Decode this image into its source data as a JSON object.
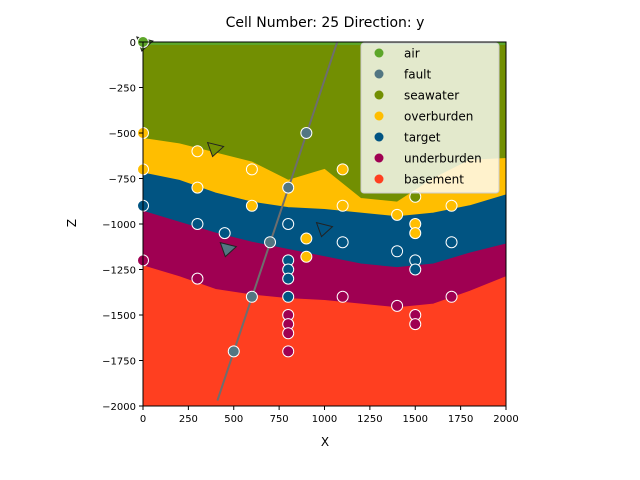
{
  "chart_data": {
    "type": "scatter",
    "title": "Cell Number: 25 Direction: y",
    "xlabel": "X",
    "ylabel": "Z",
    "xlim": [
      0,
      2000
    ],
    "ylim": [
      -2000,
      0
    ],
    "xticks": [
      0,
      250,
      500,
      750,
      1000,
      1250,
      1500,
      1750,
      2000
    ],
    "yticks": [
      0,
      -250,
      -500,
      -750,
      -1000,
      -1250,
      -1500,
      -1750,
      -2000
    ],
    "xtick_labels": [
      "0",
      "250",
      "500",
      "750",
      "1000",
      "1250",
      "1500",
      "1750",
      "2000"
    ],
    "ytick_labels": [
      "0",
      "−250",
      "−500",
      "−750",
      "−1000",
      "−1250",
      "−1500",
      "−1750",
      "−2000"
    ],
    "legend_position": "top-right",
    "units": [
      {
        "name": "air",
        "color": "#5DA629"
      },
      {
        "name": "fault",
        "color": "#527682"
      },
      {
        "name": "seawater",
        "color": "#728F02"
      },
      {
        "name": "overburden",
        "color": "#FFBE00"
      },
      {
        "name": "target",
        "color": "#015482"
      },
      {
        "name": "underburden",
        "color": "#9F0052"
      },
      {
        "name": "basement",
        "color": "#FF3F20"
      }
    ],
    "layers": [
      {
        "unit": "seawater",
        "top": [
          [
            0,
            0
          ],
          [
            2000,
            0
          ]
        ],
        "bottom": [
          [
            0,
            -530
          ],
          [
            200,
            -560
          ],
          [
            400,
            -610
          ],
          [
            600,
            -660
          ],
          [
            800,
            -760
          ],
          [
            1000,
            -700
          ],
          [
            1200,
            -860
          ],
          [
            1400,
            -880
          ],
          [
            1600,
            -750
          ],
          [
            1800,
            -650
          ],
          [
            2000,
            -640
          ]
        ]
      },
      {
        "unit": "overburden",
        "bottom": [
          [
            0,
            -720
          ],
          [
            200,
            -760
          ],
          [
            400,
            -830
          ],
          [
            600,
            -880
          ],
          [
            800,
            -910
          ],
          [
            1000,
            -920
          ],
          [
            1200,
            -940
          ],
          [
            1400,
            -960
          ],
          [
            1600,
            -940
          ],
          [
            1800,
            -900
          ],
          [
            2000,
            -840
          ]
        ]
      },
      {
        "unit": "target",
        "bottom": [
          [
            0,
            -930
          ],
          [
            200,
            -990
          ],
          [
            400,
            -1050
          ],
          [
            600,
            -1100
          ],
          [
            800,
            -1140
          ],
          [
            1000,
            -1180
          ],
          [
            1200,
            -1220
          ],
          [
            1400,
            -1240
          ],
          [
            1600,
            -1220
          ],
          [
            1800,
            -1160
          ],
          [
            2000,
            -1110
          ]
        ]
      },
      {
        "unit": "underburden",
        "bottom": [
          [
            0,
            -1230
          ],
          [
            200,
            -1290
          ],
          [
            400,
            -1360
          ],
          [
            600,
            -1390
          ],
          [
            800,
            -1410
          ],
          [
            1000,
            -1420
          ],
          [
            1200,
            -1440
          ],
          [
            1400,
            -1460
          ],
          [
            1600,
            -1440
          ],
          [
            1800,
            -1370
          ],
          [
            2000,
            -1290
          ]
        ]
      },
      {
        "unit": "basement",
        "bottom": [
          [
            0,
            -2000
          ],
          [
            2000,
            -2000
          ]
        ]
      }
    ],
    "fault_line": {
      "x": [
        410,
        1070
      ],
      "y": [
        -1970,
        0
      ],
      "color": "#6E6E6E"
    },
    "series": [
      {
        "name": "air",
        "points": [
          [
            0,
            0
          ]
        ]
      },
      {
        "name": "fault",
        "points": [
          [
            900,
            -500
          ],
          [
            800,
            -800
          ],
          [
            700,
            -1100
          ],
          [
            600,
            -1400
          ],
          [
            500,
            -1700
          ]
        ]
      },
      {
        "name": "seawater",
        "points": [
          [
            1500,
            -850
          ]
        ]
      },
      {
        "name": "overburden",
        "points": [
          [
            0,
            -500
          ],
          [
            300,
            -600
          ],
          [
            1100,
            -700
          ],
          [
            0,
            -700
          ],
          [
            600,
            -700
          ],
          [
            300,
            -800
          ],
          [
            600,
            -900
          ],
          [
            1100,
            -900
          ],
          [
            1700,
            -900
          ],
          [
            1400,
            -950
          ],
          [
            1500,
            -1000
          ],
          [
            1500,
            -1050
          ],
          [
            900,
            -1080
          ],
          [
            900,
            -1180
          ]
        ]
      },
      {
        "name": "target",
        "points": [
          [
            0,
            -900
          ],
          [
            300,
            -1000
          ],
          [
            800,
            -1000
          ],
          [
            450,
            -1050
          ],
          [
            1100,
            -1100
          ],
          [
            1700,
            -1100
          ],
          [
            1400,
            -1150
          ],
          [
            800,
            -1200
          ],
          [
            1500,
            -1200
          ],
          [
            800,
            -1250
          ],
          [
            1500,
            -1250
          ],
          [
            800,
            -1300
          ],
          [
            800,
            -1400
          ]
        ]
      },
      {
        "name": "underburden",
        "points": [
          [
            0,
            -1200
          ],
          [
            300,
            -1300
          ],
          [
            1100,
            -1400
          ],
          [
            1700,
            -1400
          ],
          [
            1400,
            -1450
          ],
          [
            800,
            -1500
          ],
          [
            1500,
            -1500
          ],
          [
            800,
            -1550
          ],
          [
            1500,
            -1550
          ],
          [
            800,
            -1600
          ],
          [
            800,
            -1700
          ]
        ]
      },
      {
        "name": "basement",
        "points": []
      }
    ],
    "orientations": [
      {
        "x": 10,
        "y": 0,
        "color": "#5DA629"
      },
      {
        "x": 400,
        "y": -580,
        "color": "#728F02"
      },
      {
        "x": 1000,
        "y": -1020,
        "color": "#015482"
      },
      {
        "x": 470,
        "y": -1130,
        "color": "#527682"
      }
    ]
  }
}
